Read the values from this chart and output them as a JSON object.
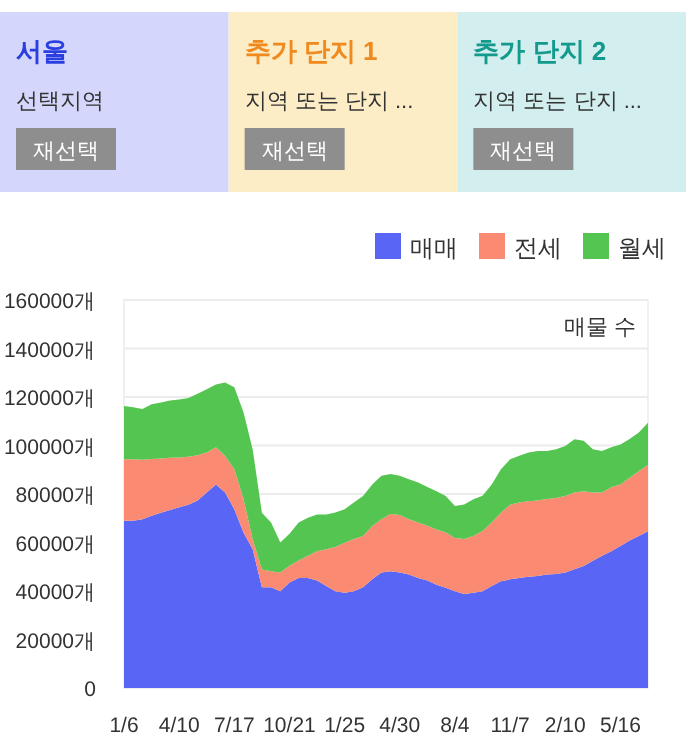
{
  "chart_data": [
    {
      "type": "other",
      "title": "서울",
      "subtitle": "선택지역",
      "annotations": [
        "재선택"
      ]
    },
    {
      "type": "other",
      "title": "추가 단지 1",
      "subtitle": "지역 또는 단지 ...",
      "annotations": [
        "재선택"
      ]
    },
    {
      "type": "other",
      "title": "추가 단지 2",
      "subtitle": "지역 또는 단지 ...",
      "annotations": [
        "재선택"
      ]
    },
    {
      "type": "area",
      "stacked": true,
      "legend": "top right",
      "grid": "y",
      "categories": [
        "1/6",
        null,
        null,
        null,
        null,
        null,
        "4/10",
        null,
        null,
        null,
        null,
        null,
        "7/17",
        null,
        null,
        null,
        null,
        null,
        "10/21",
        null,
        null,
        null,
        null,
        null,
        "1/25",
        null,
        null,
        null,
        null,
        null,
        "4/30",
        null,
        null,
        null,
        null,
        null,
        "8/4",
        null,
        null,
        null,
        null,
        null,
        "11/7",
        null,
        null,
        null,
        null,
        null,
        "2/10",
        null,
        null,
        null,
        null,
        null,
        "5/16",
        null,
        null,
        null
      ],
      "ylim": [
        0,
        160000
      ],
      "yticks": [
        {
          "value": 0,
          "label": "0"
        },
        {
          "value": 20000,
          "label": "20000개"
        },
        {
          "value": 40000,
          "label": "40000개"
        },
        {
          "value": 60000,
          "label": "60000개"
        },
        {
          "value": 80000,
          "label": "80000개"
        },
        {
          "value": 100000,
          "label": "100000개"
        },
        {
          "value": 120000,
          "label": "120000개"
        },
        {
          "value": 140000,
          "label": "140000개"
        },
        {
          "value": 160000,
          "label": "160000개"
        }
      ],
      "annotations": [
        "매물 수"
      ],
      "series": [
        {
          "name": "매매",
          "color": "#5965f5",
          "values": [
            69000,
            69000,
            69600,
            71000,
            72300,
            73400,
            74500,
            75600,
            77300,
            80600,
            83900,
            80600,
            73700,
            64100,
            57200,
            41500,
            41500,
            39900,
            43500,
            45400,
            45400,
            44300,
            42100,
            39900,
            39300,
            39900,
            41500,
            44800,
            47600,
            48100,
            47600,
            46800,
            45400,
            44300,
            42600,
            41300,
            39900,
            38800,
            39300,
            39900,
            42100,
            44000,
            44800,
            45400,
            45900,
            46200,
            46800,
            47000,
            47600,
            49000,
            50300,
            52500,
            54500,
            56400,
            58600,
            60800,
            62700,
            64600
          ]
        },
        {
          "name": "전세",
          "color": "#fa8a72",
          "values": [
            25300,
            25300,
            24500,
            23400,
            22300,
            21500,
            20600,
            19800,
            18700,
            16500,
            15400,
            15100,
            16500,
            13800,
            4100,
            7400,
            6600,
            7700,
            6900,
            7200,
            9100,
            12100,
            15100,
            18200,
            20600,
            21500,
            21200,
            22000,
            22000,
            23700,
            23700,
            22800,
            22800,
            22600,
            22800,
            22800,
            22000,
            22600,
            23400,
            24800,
            26100,
            28300,
            30800,
            31100,
            31100,
            31100,
            31100,
            31400,
            31600,
            31600,
            30800,
            28100,
            26100,
            26400,
            25300,
            25900,
            26700,
            27500
          ]
        },
        {
          "name": "월세",
          "color": "#55c552",
          "values": [
            22000,
            21500,
            20900,
            22600,
            23100,
            23700,
            23900,
            24200,
            25300,
            26100,
            25900,
            30300,
            33800,
            35800,
            37100,
            23400,
            20100,
            12400,
            13200,
            15700,
            15700,
            15100,
            14300,
            14300,
            13800,
            15100,
            16500,
            17100,
            17900,
            16500,
            16200,
            16500,
            16500,
            16000,
            15700,
            15100,
            13200,
            14300,
            15100,
            14600,
            15700,
            17900,
            18700,
            19300,
            20100,
            20400,
            19800,
            20100,
            20600,
            22000,
            20900,
            17900,
            17100,
            16500,
            16500,
            16000,
            16000,
            17300
          ]
        }
      ]
    }
  ]
}
